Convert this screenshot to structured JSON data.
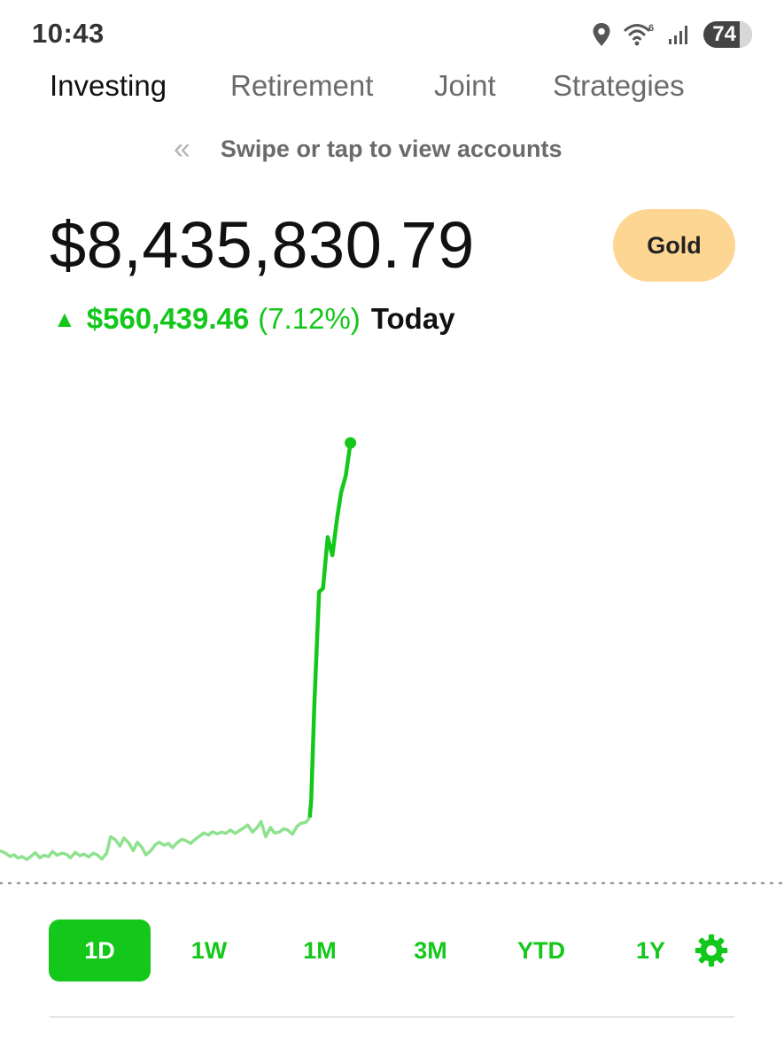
{
  "status_bar": {
    "time": "10:43",
    "battery_level": "74",
    "icons": [
      "location-icon",
      "wifi-icon",
      "signal-icon",
      "battery-icon"
    ]
  },
  "tabs": [
    {
      "label": "Investing",
      "active": true
    },
    {
      "label": "Retirement",
      "active": false
    },
    {
      "label": "Joint",
      "active": false
    },
    {
      "label": "Strategies",
      "active": false
    }
  ],
  "swipe_hint": {
    "icon": "double-chevron-left-icon",
    "text": "Swipe or tap to view accounts"
  },
  "portfolio": {
    "balance": "$8,435,830.79",
    "change_amount": "$560,439.46",
    "change_percent": "(7.12%)",
    "period": "Today",
    "direction_icon": "up-triangle-icon"
  },
  "gold_button": {
    "label": "Gold",
    "color": "#fcd692"
  },
  "chart_data": {
    "type": "line",
    "x": [
      0.0,
      0.006,
      0.013,
      0.018,
      0.023,
      0.028,
      0.034,
      0.04,
      0.045,
      0.051,
      0.056,
      0.062,
      0.067,
      0.073,
      0.079,
      0.085,
      0.09,
      0.096,
      0.102,
      0.107,
      0.113,
      0.119,
      0.124,
      0.13,
      0.136,
      0.141,
      0.147,
      0.153,
      0.158,
      0.164,
      0.17,
      0.175,
      0.181,
      0.186,
      0.192,
      0.198,
      0.203,
      0.209,
      0.215,
      0.22,
      0.226,
      0.232,
      0.238,
      0.243,
      0.249,
      0.255,
      0.26,
      0.266,
      0.271,
      0.277,
      0.283,
      0.288,
      0.294,
      0.3,
      0.305,
      0.311,
      0.316,
      0.322,
      0.328,
      0.333,
      0.339,
      0.345,
      0.35,
      0.356,
      0.362,
      0.367,
      0.373,
      0.379,
      0.384,
      0.39,
      0.395,
      0.397,
      0.401,
      0.407,
      0.412,
      0.418,
      0.424,
      0.43,
      0.435,
      0.441,
      0.447
    ],
    "values": [
      0.031,
      0.026,
      0.017,
      0.021,
      0.013,
      0.017,
      0.01,
      0.018,
      0.026,
      0.014,
      0.02,
      0.017,
      0.029,
      0.02,
      0.025,
      0.022,
      0.014,
      0.027,
      0.019,
      0.023,
      0.016,
      0.025,
      0.021,
      0.011,
      0.025,
      0.064,
      0.057,
      0.042,
      0.061,
      0.05,
      0.031,
      0.051,
      0.039,
      0.021,
      0.03,
      0.045,
      0.051,
      0.044,
      0.048,
      0.038,
      0.05,
      0.058,
      0.054,
      0.048,
      0.058,
      0.066,
      0.073,
      0.068,
      0.076,
      0.071,
      0.075,
      0.072,
      0.08,
      0.072,
      0.078,
      0.085,
      0.092,
      0.075,
      0.086,
      0.1,
      0.064,
      0.086,
      0.073,
      0.075,
      0.083,
      0.08,
      0.07,
      0.089,
      0.096,
      0.098,
      0.11,
      0.15,
      0.382,
      0.646,
      0.654,
      0.776,
      0.733,
      0.822,
      0.882,
      0.922,
      1.0
    ],
    "ylim": [
      0,
      1
    ],
    "line_colors": {
      "early": "#8ee28e",
      "recent": "#13c81a"
    },
    "baseline": "dotted",
    "end_marker": true
  },
  "ranges": [
    {
      "label": "1D",
      "selected": true
    },
    {
      "label": "1W",
      "selected": false
    },
    {
      "label": "1M",
      "selected": false
    },
    {
      "label": "3M",
      "selected": false
    },
    {
      "label": "YTD",
      "selected": false
    },
    {
      "label": "1Y",
      "selected": false
    }
  ],
  "settings_icon": "gear-icon",
  "colors": {
    "accent_green": "#13c81a",
    "muted_text": "#6b6b6b",
    "gold": "#fcd692"
  }
}
